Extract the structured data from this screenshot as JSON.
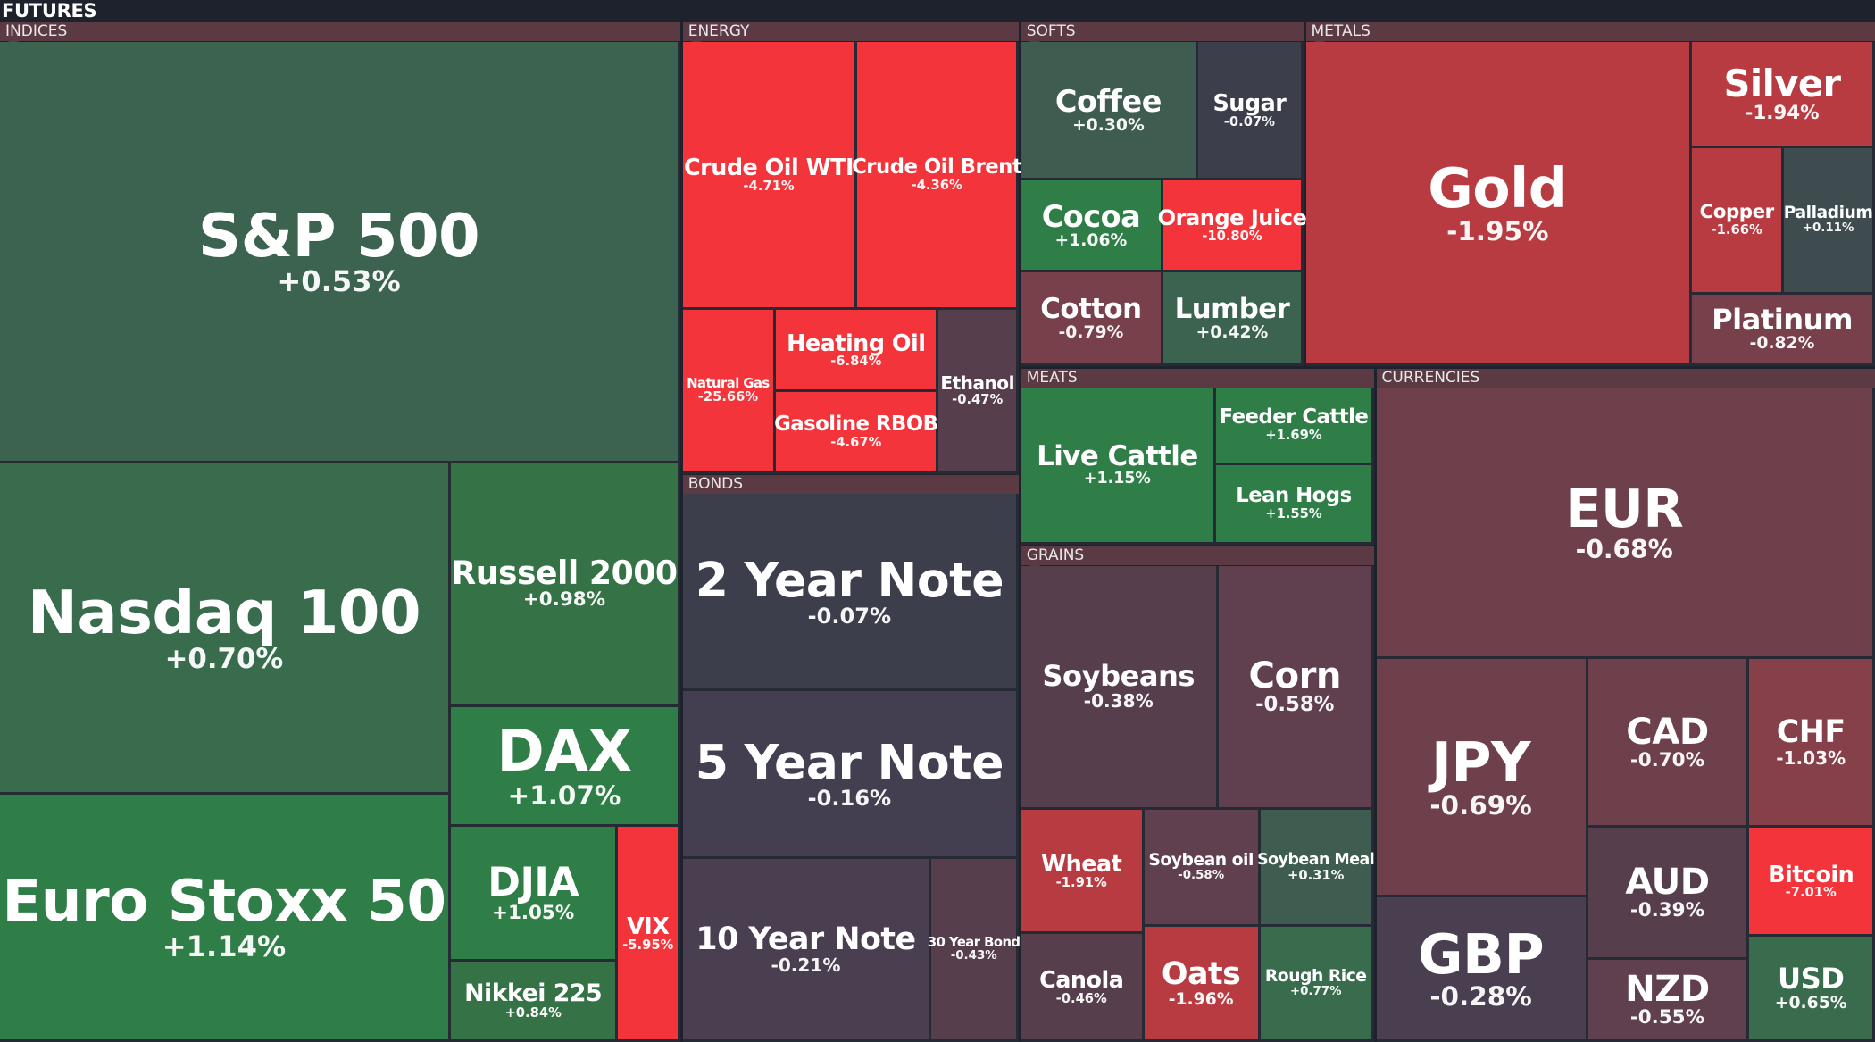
{
  "title": "FUTURES",
  "chart_data": {
    "type": "treemap",
    "sections": [
      {
        "name": "INDICES",
        "items": [
          {
            "name": "S&P 500",
            "change": "+0.53%"
          },
          {
            "name": "Nasdaq 100",
            "change": "+0.70%"
          },
          {
            "name": "Russell 2000",
            "change": "+0.98%"
          },
          {
            "name": "DAX",
            "change": "+1.07%"
          },
          {
            "name": "Euro Stoxx 50",
            "change": "+1.14%"
          },
          {
            "name": "DJIA",
            "change": "+1.05%"
          },
          {
            "name": "VIX",
            "change": "-5.95%"
          },
          {
            "name": "Nikkei 225",
            "change": "+0.84%"
          }
        ]
      },
      {
        "name": "ENERGY",
        "items": [
          {
            "name": "Crude Oil WTI",
            "change": "-4.71%"
          },
          {
            "name": "Crude Oil Brent",
            "change": "-4.36%"
          },
          {
            "name": "Natural Gas",
            "change": "-25.66%"
          },
          {
            "name": "Heating Oil",
            "change": "-6.84%"
          },
          {
            "name": "Gasoline RBOB",
            "change": "-4.67%"
          },
          {
            "name": "Ethanol",
            "change": "-0.47%"
          }
        ]
      },
      {
        "name": "BONDS",
        "items": [
          {
            "name": "2 Year Note",
            "change": "-0.07%"
          },
          {
            "name": "5 Year Note",
            "change": "-0.16%"
          },
          {
            "name": "10 Year Note",
            "change": "-0.21%"
          },
          {
            "name": "30 Year Bond",
            "change": "-0.43%"
          }
        ]
      },
      {
        "name": "SOFTS",
        "items": [
          {
            "name": "Coffee",
            "change": "+0.30%"
          },
          {
            "name": "Sugar",
            "change": "-0.07%"
          },
          {
            "name": "Cocoa",
            "change": "+1.06%"
          },
          {
            "name": "Orange Juice",
            "change": "-10.80%"
          },
          {
            "name": "Cotton",
            "change": "-0.79%"
          },
          {
            "name": "Lumber",
            "change": "+0.42%"
          }
        ]
      },
      {
        "name": "MEATS",
        "items": [
          {
            "name": "Live Cattle",
            "change": "+1.15%"
          },
          {
            "name": "Feeder Cattle",
            "change": "+1.69%"
          },
          {
            "name": "Lean Hogs",
            "change": "+1.55%"
          }
        ]
      },
      {
        "name": "GRAINS",
        "items": [
          {
            "name": "Soybeans",
            "change": "-0.38%"
          },
          {
            "name": "Corn",
            "change": "-0.58%"
          },
          {
            "name": "Wheat",
            "change": "-1.91%"
          },
          {
            "name": "Soybean oil",
            "change": "-0.58%"
          },
          {
            "name": "Soybean Meal",
            "change": "+0.31%"
          },
          {
            "name": "Canola",
            "change": "-0.46%"
          },
          {
            "name": "Oats",
            "change": "-1.96%"
          },
          {
            "name": "Rough Rice",
            "change": "+0.77%"
          }
        ]
      },
      {
        "name": "METALS",
        "items": [
          {
            "name": "Gold",
            "change": "-1.95%"
          },
          {
            "name": "Silver",
            "change": "-1.94%"
          },
          {
            "name": "Copper",
            "change": "-1.66%"
          },
          {
            "name": "Palladium",
            "change": "+0.11%"
          },
          {
            "name": "Platinum",
            "change": "-0.82%"
          }
        ]
      },
      {
        "name": "CURRENCIES",
        "items": [
          {
            "name": "EUR",
            "change": "-0.68%"
          },
          {
            "name": "JPY",
            "change": "-0.69%"
          },
          {
            "name": "CAD",
            "change": "-0.70%"
          },
          {
            "name": "CHF",
            "change": "-1.03%"
          },
          {
            "name": "GBP",
            "change": "-0.28%"
          },
          {
            "name": "AUD",
            "change": "-0.39%"
          },
          {
            "name": "Bitcoin",
            "change": "-7.01%"
          },
          {
            "name": "NZD",
            "change": "-0.55%"
          },
          {
            "name": "USD",
            "change": "+0.65%"
          }
        ]
      }
    ]
  }
}
